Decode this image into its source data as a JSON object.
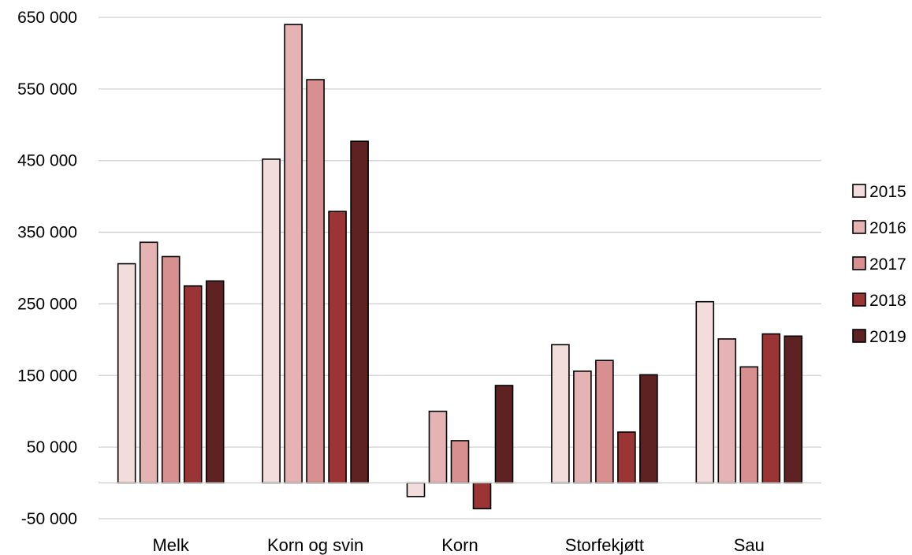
{
  "chart_data": {
    "type": "bar",
    "categories": [
      "Melk",
      "Korn og svin",
      "Korn",
      "Storfekjøtt",
      "Sau"
    ],
    "series": [
      {
        "name": "2015",
        "color": "#f2dcdc",
        "values": [
          306000,
          452000,
          -19000,
          193000,
          253000
        ]
      },
      {
        "name": "2016",
        "color": "#e5b3b3",
        "values": [
          336000,
          640000,
          100000,
          156000,
          201000
        ]
      },
      {
        "name": "2017",
        "color": "#d88f8f",
        "values": [
          316000,
          563000,
          59000,
          171000,
          162000
        ]
      },
      {
        "name": "2018",
        "color": "#9b3535",
        "values": [
          275000,
          379000,
          -36000,
          71000,
          208000
        ]
      },
      {
        "name": "2019",
        "color": "#5e2222",
        "values": [
          282000,
          477000,
          136000,
          151000,
          205000
        ]
      }
    ],
    "ylim": [
      -50000,
      650000
    ],
    "ytick_values": [
      -50000,
      50000,
      150000,
      250000,
      350000,
      450000,
      550000,
      650000
    ],
    "yticks": [
      "-50 000",
      "50 000",
      "150 000",
      "250 000",
      "350 000",
      "450 000",
      "550 000",
      "650 000"
    ],
    "grid": true,
    "legend_position": "right"
  }
}
